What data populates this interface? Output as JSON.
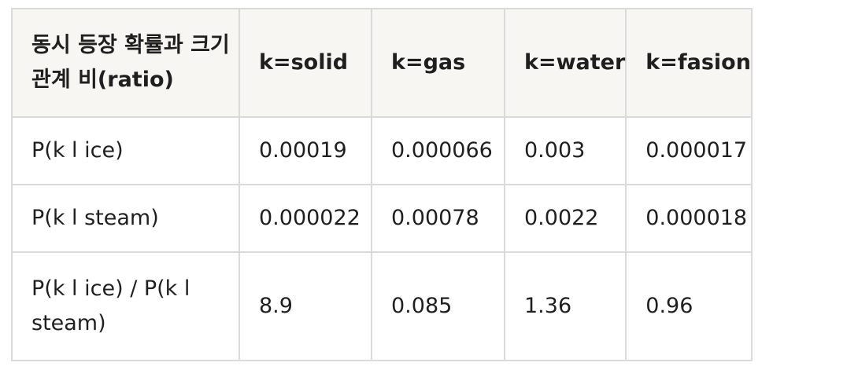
{
  "table": {
    "headers": [
      "동시 등장 확률과 크기 관계 비(ratio)",
      "k=solid",
      "k=gas",
      "k=water",
      "k=fasion"
    ],
    "rows": [
      [
        "P(k l ice)",
        "0.00019",
        "0.000066",
        "0.003",
        "0.000017"
      ],
      [
        "P(k l steam)",
        "0.000022",
        "0.00078",
        "0.0022",
        "0.000018"
      ],
      [
        "P(k l ice) / P(k l steam)",
        "8.9",
        "0.085",
        "1.36",
        "0.96"
      ]
    ]
  }
}
